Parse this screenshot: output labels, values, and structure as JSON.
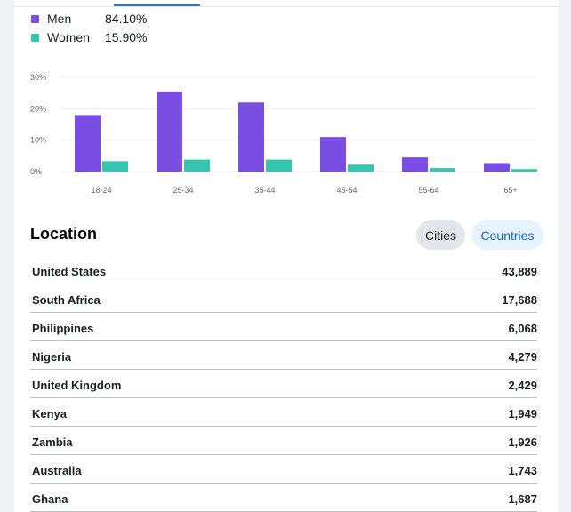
{
  "gender_legend": [
    {
      "label": "Men",
      "value": "84.10%",
      "color": "#7b4ee3"
    },
    {
      "label": "Women",
      "value": "15.90%",
      "color": "#33c6b0"
    }
  ],
  "chart_data": {
    "type": "bar",
    "categories": [
      "18-24",
      "25-34",
      "35-44",
      "45-54",
      "55-64",
      "65+"
    ],
    "series": [
      {
        "name": "Men",
        "color": "#7b4ee3",
        "values": [
          18,
          25.5,
          22,
          11,
          4.5,
          2.7
        ]
      },
      {
        "name": "Women",
        "color": "#33c6b0",
        "values": [
          3.3,
          3.8,
          3.8,
          2.2,
          1.1,
          0.8
        ]
      }
    ],
    "yticks": [
      "0%",
      "10%",
      "20%",
      "30%"
    ],
    "ylim": [
      0,
      30
    ],
    "grid": true
  },
  "location": {
    "title": "Location",
    "cities_label": "Cities",
    "countries_label": "Countries",
    "rows": [
      {
        "name": "United States",
        "count": "43,889"
      },
      {
        "name": "South Africa",
        "count": "17,688"
      },
      {
        "name": "Philippines",
        "count": "6,068"
      },
      {
        "name": "Nigeria",
        "count": "4,279"
      },
      {
        "name": "United Kingdom",
        "count": "2,429"
      },
      {
        "name": "Kenya",
        "count": "1,949"
      },
      {
        "name": "Zambia",
        "count": "1,926"
      },
      {
        "name": "Australia",
        "count": "1,743"
      },
      {
        "name": "Ghana",
        "count": "1,687"
      }
    ]
  }
}
